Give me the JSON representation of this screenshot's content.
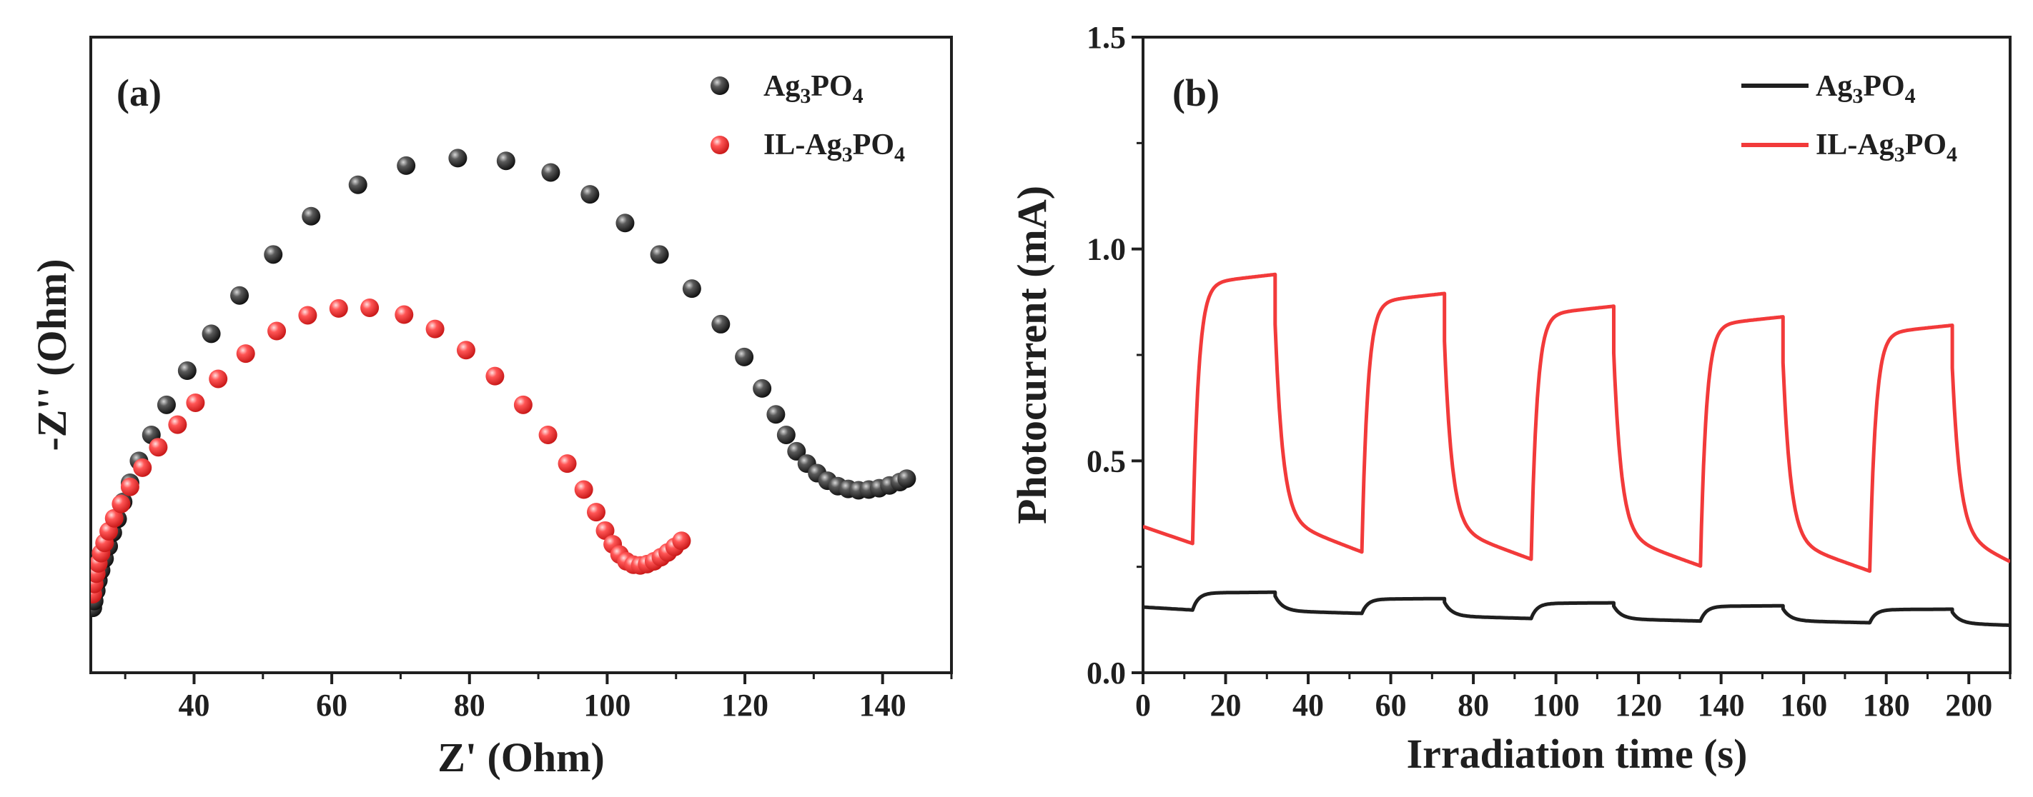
{
  "chart_data": [
    {
      "panel": "(a)",
      "type": "scatter",
      "xlabel": "Z' (Ohm)",
      "ylabel": "-Z'' (Ohm)",
      "xlim": [
        25,
        150
      ],
      "ylim": [
        -8,
        85
      ],
      "xticks": [
        "40",
        "60",
        "80",
        "100",
        "120",
        "140"
      ],
      "yticks": [],
      "legend_position": "top-right",
      "series": [
        {
          "name": "Ag3PO4",
          "marker_color": "#2b2b2b",
          "x": [
            25.3,
            25.5,
            25.8,
            26.1,
            26.5,
            27.0,
            27.6,
            28.2,
            28.9,
            29.7,
            30.7,
            32.0,
            33.8,
            36.0,
            39.0,
            42.5,
            46.6,
            51.5,
            57.0,
            63.8,
            70.8,
            78.3,
            85.3,
            91.8,
            97.5,
            102.6,
            107.6,
            112.3,
            116.5,
            119.9,
            122.5,
            124.5,
            126.0,
            127.5,
            129.0,
            130.5,
            132.0,
            133.5,
            135.0,
            136.5,
            138.0,
            139.5,
            141.0,
            142.5,
            143.5
          ],
          "y": [
            1.5,
            2.5,
            4.0,
            5.5,
            7.0,
            8.7,
            10.5,
            12.5,
            14.5,
            17.0,
            19.8,
            23.0,
            26.8,
            31.2,
            36.2,
            41.6,
            47.2,
            53.2,
            58.8,
            63.4,
            66.2,
            67.3,
            66.9,
            65.2,
            62.0,
            57.8,
            53.2,
            48.2,
            43.0,
            38.2,
            33.6,
            29.8,
            26.8,
            24.4,
            22.6,
            21.2,
            20.1,
            19.3,
            18.9,
            18.7,
            18.8,
            19.0,
            19.4,
            19.9,
            20.4
          ]
        },
        {
          "name": "IL-Ag3PO4",
          "marker_color": "#f2302f",
          "x": [
            25.3,
            25.5,
            25.8,
            26.1,
            26.5,
            27.0,
            27.6,
            28.4,
            29.4,
            30.7,
            32.5,
            34.8,
            37.6,
            40.2,
            43.5,
            47.5,
            52.0,
            56.5,
            61.0,
            65.5,
            70.5,
            75.0,
            79.5,
            83.7,
            87.8,
            91.4,
            94.2,
            96.6,
            98.4,
            99.7,
            100.8,
            101.8,
            102.8,
            103.8,
            104.8,
            105.8,
            106.8,
            107.8,
            108.8,
            109.8,
            110.8
          ],
          "y": [
            3.5,
            5.0,
            6.5,
            8.0,
            9.5,
            11.0,
            12.7,
            14.6,
            16.7,
            19.2,
            22.0,
            25.0,
            28.3,
            31.5,
            35.0,
            38.7,
            42.0,
            44.3,
            45.3,
            45.4,
            44.4,
            42.3,
            39.2,
            35.4,
            31.2,
            26.8,
            22.6,
            18.8,
            15.5,
            12.8,
            10.8,
            9.3,
            8.3,
            7.8,
            7.7,
            7.9,
            8.3,
            8.9,
            9.6,
            10.4,
            11.3
          ]
        }
      ],
      "legend": [
        "Ag3PO4",
        "IL-Ag3PO4"
      ]
    },
    {
      "panel": "(b)",
      "type": "line",
      "xlabel": "Irradiation time (s)",
      "ylabel": "Photocurrent (mA)",
      "xlim": [
        0,
        210
      ],
      "ylim": [
        0.0,
        1.5
      ],
      "xticks": [
        "0",
        "20",
        "40",
        "60",
        "80",
        "100",
        "120",
        "140",
        "160",
        "180",
        "200"
      ],
      "yticks": [
        "0.0",
        "0.5",
        "1.0",
        "1.5"
      ],
      "legend_position": "top-right",
      "series": [
        {
          "name": "Ag3PO4",
          "line_color": "#1f1f1f",
          "dark_baseline": [
            0.155,
            0.148
          ],
          "cycles": [
            {
              "on": 12,
              "off": 32,
              "start": 0.148,
              "steady": 0.19,
              "end_dark": 0.14
            },
            {
              "on": 53,
              "off": 73,
              "start": 0.14,
              "steady": 0.175,
              "end_dark": 0.128
            },
            {
              "on": 94,
              "off": 114,
              "start": 0.128,
              "steady": 0.165,
              "end_dark": 0.122
            },
            {
              "on": 135,
              "off": 155,
              "start": 0.122,
              "steady": 0.158,
              "end_dark": 0.118
            },
            {
              "on": 176,
              "off": 196,
              "start": 0.118,
              "steady": 0.15,
              "end_dark": 0.112
            }
          ]
        },
        {
          "name": "IL-Ag3PO4",
          "line_color": "#f23a3a",
          "dark_baseline": [
            0.345,
            0.305
          ],
          "cycles": [
            {
              "on": 12,
              "off": 32,
              "start": 0.305,
              "steady": 0.94,
              "end_dark": 0.285
            },
            {
              "on": 53,
              "off": 73,
              "start": 0.285,
              "steady": 0.895,
              "end_dark": 0.268
            },
            {
              "on": 94,
              "off": 114,
              "start": 0.268,
              "steady": 0.865,
              "end_dark": 0.252
            },
            {
              "on": 135,
              "off": 155,
              "start": 0.252,
              "steady": 0.84,
              "end_dark": 0.24
            },
            {
              "on": 176,
              "off": 196,
              "start": 0.24,
              "steady": 0.82,
              "end_dark": 0.262
            }
          ]
        }
      ],
      "legend": [
        "Ag3PO4",
        "IL-Ag3PO4"
      ]
    }
  ]
}
